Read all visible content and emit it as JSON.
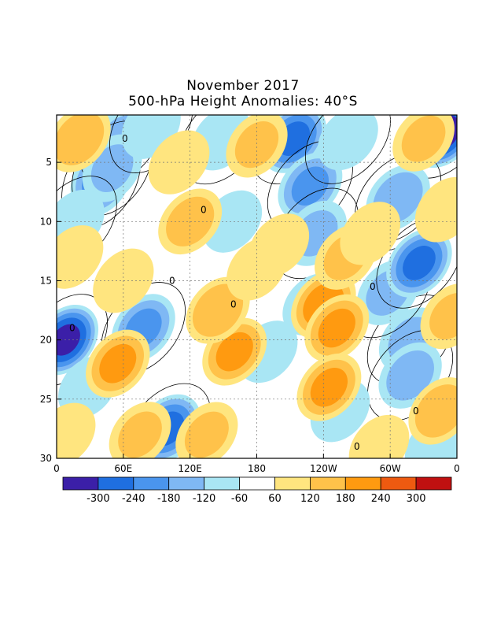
{
  "chart_data": {
    "type": "heatmap",
    "title": "November 2017",
    "subtitle": "500-hPa Height Anomalies: 40°S",
    "xlabel": "",
    "ylabel": "",
    "x_ticks": [
      "0",
      "60E",
      "120E",
      "180",
      "120W",
      "60W",
      "0"
    ],
    "y_ticks": [
      "5",
      "10",
      "15",
      "20",
      "25",
      "30"
    ],
    "xlim": [
      0,
      360
    ],
    "ylim": [
      1,
      30
    ],
    "contour_line_label": "0",
    "colorbar": {
      "levels": [
        "-300",
        "-240",
        "-180",
        "-120",
        "-60",
        "60",
        "120",
        "180",
        "240",
        "300"
      ],
      "colors": [
        "#3b1fa8",
        "#1f6fe0",
        "#4a95ee",
        "#7fb8f4",
        "#a9e6f4",
        "#ffffff",
        "#ffe57f",
        "#ffc24a",
        "#ff9a10",
        "#ee5a10",
        "#c01010"
      ]
    },
    "anomaly_centers": [
      {
        "lon": 348,
        "day": 2.5,
        "value": -320,
        "rot": 0.9
      },
      {
        "lon": 213,
        "day": 3,
        "value": -240,
        "rot": 1
      },
      {
        "lon": 228,
        "day": 7,
        "value": -180,
        "rot": 1
      },
      {
        "lon": 233,
        "day": 11,
        "value": -120,
        "rot": 1
      },
      {
        "lon": 8,
        "day": 20,
        "value": -300,
        "rot": 0.8
      },
      {
        "lon": 40,
        "day": 6.5,
        "value": -200,
        "rot": 0.4
      },
      {
        "lon": 58,
        "day": 3,
        "value": -120,
        "rot": 0.8
      },
      {
        "lon": 50,
        "day": 5.5,
        "value": -120,
        "rot": 0.5
      },
      {
        "lon": 78,
        "day": 19,
        "value": -180,
        "rot": 0.8
      },
      {
        "lon": 318,
        "day": 20,
        "value": -120,
        "rot": 1.1
      },
      {
        "lon": 318,
        "day": 23,
        "value": -140,
        "rot": 1
      },
      {
        "lon": 298,
        "day": 16,
        "value": -120,
        "rot": 1
      },
      {
        "lon": 307,
        "day": 8,
        "value": -150,
        "rot": 1.2
      },
      {
        "lon": 326,
        "day": 13.5,
        "value": -240,
        "rot": 1
      },
      {
        "lon": 100,
        "day": 27.5,
        "value": -240,
        "rot": 1
      },
      {
        "lon": 28,
        "day": 24,
        "value": -60,
        "rot": 0.9
      },
      {
        "lon": 16,
        "day": 10,
        "value": -90,
        "rot": 0.9
      },
      {
        "lon": 85,
        "day": 2,
        "value": -90,
        "rot": 0.7
      },
      {
        "lon": 148,
        "day": 3,
        "value": -90,
        "rot": 0.9
      },
      {
        "lon": 158,
        "day": 10,
        "value": -60,
        "rot": 1
      },
      {
        "lon": 230,
        "day": 17,
        "value": -60,
        "rot": 1.1
      },
      {
        "lon": 190,
        "day": 21,
        "value": -60,
        "rot": 1
      },
      {
        "lon": 262,
        "day": 3,
        "value": -90,
        "rot": 1
      },
      {
        "lon": 255,
        "day": 26,
        "value": -60,
        "rot": 1
      },
      {
        "lon": 340,
        "day": 29,
        "value": -60,
        "rot": 1
      },
      {
        "lon": 20,
        "day": 3,
        "value": 160,
        "rot": 0.9
      },
      {
        "lon": 120,
        "day": 10,
        "value": 140,
        "rot": 1.2
      },
      {
        "lon": 110,
        "day": 5,
        "value": 100,
        "rot": 1
      },
      {
        "lon": 160,
        "day": 21,
        "value": 180,
        "rot": 1
      },
      {
        "lon": 145,
        "day": 17.5,
        "value": 160,
        "rot": 1
      },
      {
        "lon": 180,
        "day": 3.5,
        "value": 120,
        "rot": 0.8
      },
      {
        "lon": 240,
        "day": 17,
        "value": 200,
        "rot": 1
      },
      {
        "lon": 252,
        "day": 19,
        "value": 180,
        "rot": 1
      },
      {
        "lon": 245,
        "day": 24,
        "value": 180,
        "rot": 1
      },
      {
        "lon": 55,
        "day": 22,
        "value": 180,
        "rot": 0.9
      },
      {
        "lon": 75,
        "day": 28,
        "value": 120,
        "rot": 0.9
      },
      {
        "lon": 135,
        "day": 28,
        "value": 120,
        "rot": 1
      },
      {
        "lon": 260,
        "day": 13,
        "value": 120,
        "rot": 1
      },
      {
        "lon": 345,
        "day": 26,
        "value": 160,
        "rot": 0.9
      },
      {
        "lon": 350,
        "day": 9,
        "value": 110,
        "rot": 0.9
      },
      {
        "lon": 355,
        "day": 18,
        "value": 120,
        "rot": 0.9
      },
      {
        "lon": 330,
        "day": 3,
        "value": 120,
        "rot": 0.9
      },
      {
        "lon": 60,
        "day": 15,
        "value": 100,
        "rot": 0.9
      },
      {
        "lon": 200,
        "day": 12,
        "value": 90,
        "rot": 1
      },
      {
        "lon": 180,
        "day": 14,
        "value": 90,
        "rot": 1
      },
      {
        "lon": 15,
        "day": 13,
        "value": 90,
        "rot": 0.9
      },
      {
        "lon": 290,
        "day": 29,
        "value": 90,
        "rot": 1
      },
      {
        "lon": 282,
        "day": 11,
        "value": 90,
        "rot": 1
      },
      {
        "lon": 8,
        "day": 28,
        "value": 90,
        "rot": 0.9
      }
    ]
  }
}
